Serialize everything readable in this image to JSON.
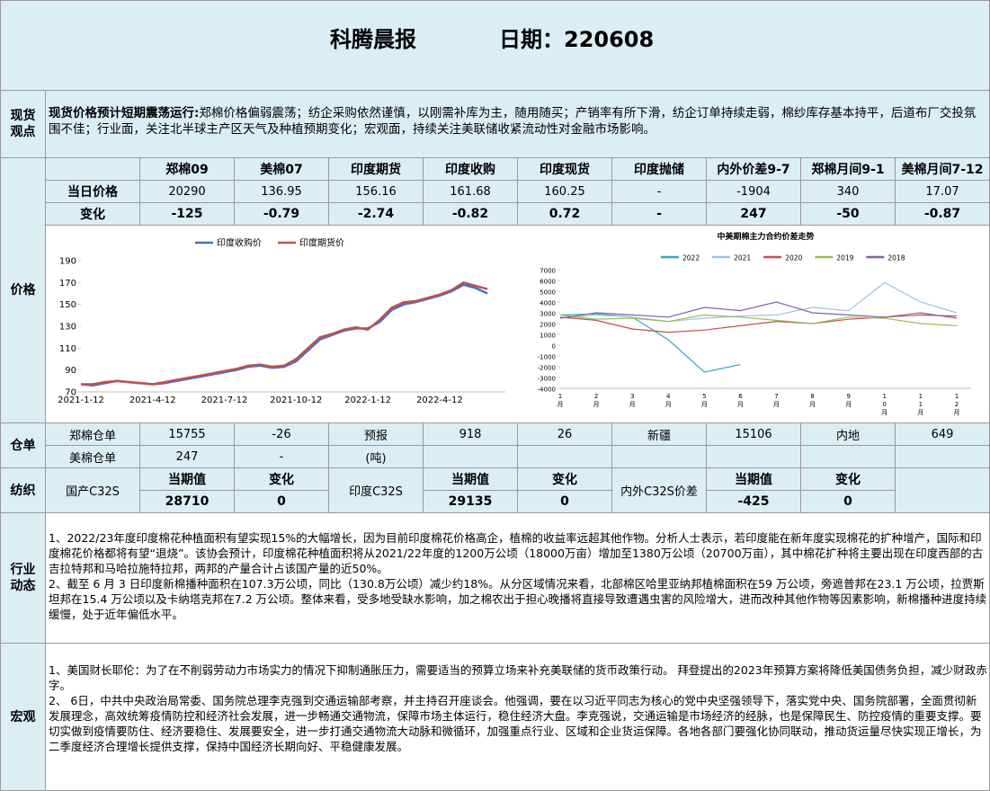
{
  "header": {
    "title": "科腾晨报",
    "date": "日期：220608"
  },
  "sections": {
    "spot": "现货观点",
    "price": "价格",
    "warehouse": "仓单",
    "textile": "纺织",
    "industry": "行业动态",
    "macro": "宏观"
  },
  "spot_view": {
    "lead": "现货价格预计短期震荡运行:",
    "text": "郑棉价格偏弱震荡；纺企采购依然谨慎，以刚需补库为主，随用随买；产销率有所下滑，纺企订单持续走弱，棉纱库存基本持平，后道布厂交投氛围不佳；行业面，关注北半球主产区天气及种植预期变化；宏观面，持续关注美联储收紧流动性对金融市场影响。"
  },
  "price_table": {
    "headers": [
      "郑棉09",
      "美棉07",
      "印度期货",
      "印度收购",
      "印度现货",
      "印度抛储",
      "内外价差9-7",
      "郑棉月间9-1",
      "美棉月间7-12"
    ],
    "rows": [
      {
        "label": "当日价格",
        "cells": [
          "20290",
          "136.95",
          "156.16",
          "161.68",
          "160.25",
          "-",
          "-1904",
          "340",
          "17.07"
        ]
      },
      {
        "label": "变化",
        "cells": [
          "-125",
          "-0.79",
          "-2.74",
          "-0.82",
          "0.72",
          "-",
          "247",
          "-50",
          "-0.87"
        ]
      }
    ]
  },
  "warehouse": {
    "rows": [
      [
        "郑棉仓单",
        "15755",
        "-26",
        "预报",
        "918",
        "26",
        "新疆",
        "15106",
        "内地",
        "649"
      ],
      [
        "美棉仓单",
        "247",
        "-",
        "(吨)"
      ]
    ]
  },
  "textile": [
    {
      "name": "国产C32S",
      "headers": [
        "当期值",
        "变化"
      ],
      "values": [
        "28710",
        "0"
      ]
    },
    {
      "name": "印度C32S",
      "headers": [
        "当期值",
        "变化"
      ],
      "values": [
        "29135",
        "0"
      ]
    },
    {
      "name": "内外C32S价差",
      "headers": [
        "当期值",
        "变化"
      ],
      "values": [
        "-425",
        "0"
      ]
    }
  ],
  "industry": [
    "1、2022/23年度印度棉花种植面积有望实现15%的大幅增长，因为目前印度棉花价格高企，植棉的收益率远超其他作物。分析人士表示，若印度能在新年度实现棉花的扩种增产，国际和印度棉花价格都将有望“退烧”。该协会预计，印度棉花种植面积将从2021/22年度的1200万公顷（18000万亩）增加至1380万公顷（20700万亩），其中棉花扩种将主要出现在印度西部的古吉拉特邦和马哈拉施特拉邦，两邦的产量合计占该国产量的近50%。",
    "2、截至 6 月 3 日印度新棉播种面积在107.3万公顷，同比（130.8万公顷）减少约18%。从分区域情况来看，北部棉区哈里亚纳邦植棉面积在59 万公顷，旁遮普邦在23.1 万公顷，拉贾斯坦邦在15.4 万公顷以及卡纳塔克邦在7.2 万公顷。整体来看，受多地受缺水影响，加之棉农出于担心晚播将直接导致遭遇虫害的风险增大，进而改种其他作物等因素影响，新棉播种进度持续缓慢，处于近年偏低水平。"
  ],
  "macro": [
    "1、美国财长耶伦：为了在不削弱劳动力市场实力的情况下抑制通胀压力，需要适当的预算立场来补充美联储的货币政策行动。 拜登提出的2023年预算方案将降低美国债务负担，减少财政赤字。",
    "2、 6日，中共中央政治局常委、国务院总理李克强到交通运输部考察，并主持召开座谈会。他强调，要在以习近平同志为核心的党中央坚强领导下，落实党中央、国务院部署，全面贯彻新发展理念，高效统筹疫情防控和经济社会发展，进一步畅通交通物流，保障市场主体运行，稳住经济大盘。李克强说，交通运输是市场经济的经脉，也是保障民生、防控疫情的重要支撑。要切实做到疫情要防住、经济要稳住、发展要安全，进一步打通交通物流大动脉和微循环，加强重点行业、区域和企业货运保障。各地各部门要强化协同联动，推动货运量尽快实现正增长，为二季度经济合理增长提供支撑，保持中国经济长期向好、平稳健康发展。"
  ],
  "chart_data": [
    {
      "type": "line",
      "categories": [
        "2021-1-12",
        null,
        null,
        null,
        null,
        null,
        "2021-4-12",
        null,
        null,
        null,
        null,
        null,
        "2021-7-12",
        null,
        null,
        null,
        null,
        null,
        "2021-10-12",
        null,
        null,
        null,
        null,
        null,
        "2022-1-12",
        null,
        null,
        null,
        null,
        null,
        "2022-4-12",
        null,
        null,
        null,
        null
      ],
      "series": [
        {
          "name": "印度收购价",
          "color": "#4472c4",
          "values": [
            77,
            76,
            78,
            80,
            79,
            78,
            77,
            78,
            80,
            82,
            84,
            86,
            88,
            90,
            93,
            94,
            92,
            93,
            98,
            108,
            118,
            122,
            126,
            128,
            128,
            134,
            145,
            150,
            152,
            155,
            158,
            162,
            168,
            165,
            160
          ]
        },
        {
          "name": "印度期货价",
          "color": "#c0504d",
          "values": [
            77,
            77,
            79,
            80,
            79,
            78,
            77,
            79,
            81,
            83,
            85,
            87,
            89,
            91,
            94,
            95,
            93,
            94,
            100,
            110,
            120,
            123,
            127,
            129,
            127,
            136,
            147,
            152,
            153,
            156,
            159,
            163,
            170,
            167,
            164
          ]
        }
      ],
      "ylim": [
        70,
        190
      ],
      "yticks": [
        70,
        90,
        110,
        130,
        150,
        170,
        190
      ],
      "grid": false
    },
    {
      "type": "line",
      "title": "中美期棉主力合约价差走势",
      "categories": [
        "1月",
        "2月",
        "3月",
        "4月",
        "5月",
        "6月",
        "7月",
        "8月",
        "9月",
        "10月",
        "11月",
        "12月"
      ],
      "series": [
        {
          "name": "2022",
          "color": "#31a6bf",
          "values": [
            2800,
            2900,
            2600,
            500,
            -2500,
            -1800,
            null,
            null,
            null,
            null,
            null,
            null
          ]
        },
        {
          "name": "2021",
          "color": "#9dc3e6",
          "values": [
            2500,
            2800,
            2600,
            2200,
            2500,
            2700,
            2800,
            3500,
            3200,
            5800,
            4000,
            3000
          ]
        },
        {
          "name": "2020",
          "color": "#c0504d",
          "values": [
            2600,
            2300,
            1500,
            1200,
            1400,
            1800,
            2200,
            2000,
            2400,
            2600,
            2800,
            2700
          ]
        },
        {
          "name": "2019",
          "color": "#9bbb59",
          "values": [
            2800,
            2400,
            2500,
            2200,
            2800,
            2600,
            2300,
            2000,
            2600,
            2500,
            2000,
            1800
          ]
        },
        {
          "name": "2018",
          "color": "#8064a2",
          "values": [
            2500,
            3000,
            2800,
            2600,
            3500,
            3200,
            4000,
            3000,
            2800,
            2600,
            3000,
            2500
          ]
        }
      ],
      "ylim": [
        -4000,
        7000
      ],
      "yticks": [
        -4000,
        -3000,
        -2000,
        -1000,
        0,
        1000,
        2000,
        3000,
        4000,
        5000,
        6000,
        7000
      ],
      "grid": false
    }
  ]
}
